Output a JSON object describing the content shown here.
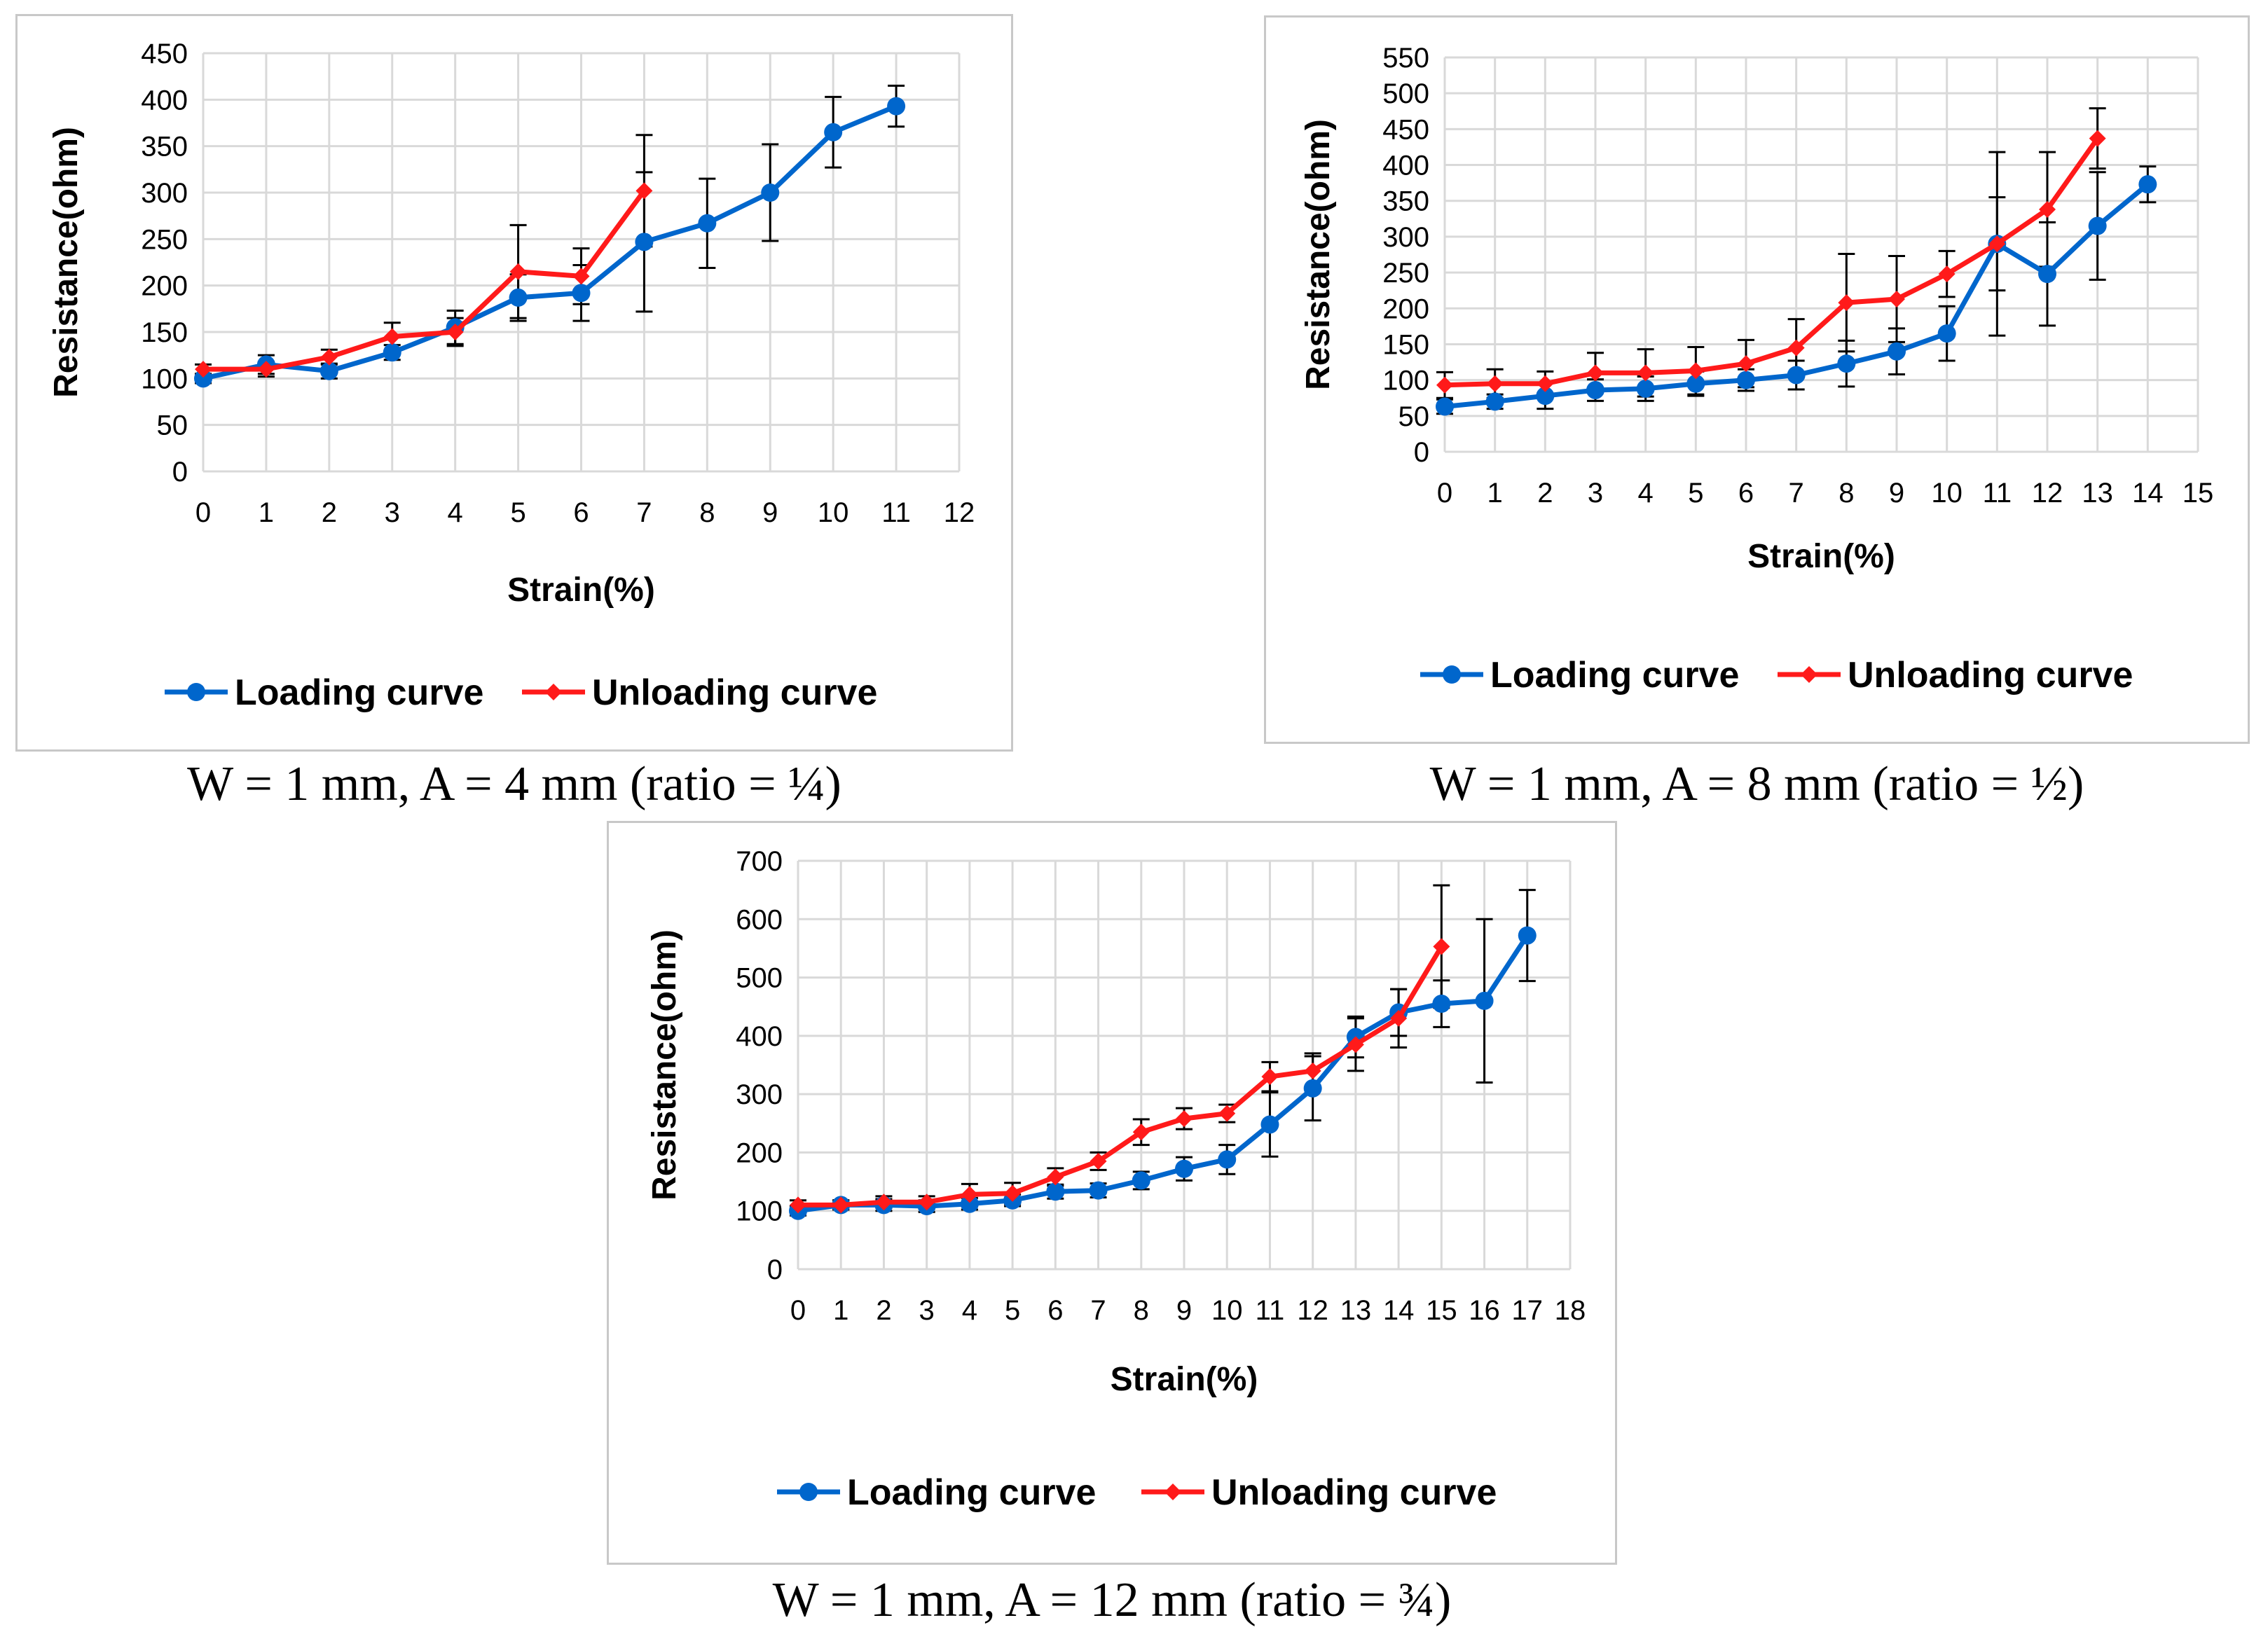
{
  "colors": {
    "loading": "#0066cc",
    "unloading": "#ff1a1a",
    "grid": "#d9d9d9",
    "errorbar": "#000000"
  },
  "captions": [
    "W = 1 mm, A = 4 mm (ratio = ¼)",
    "W = 1 mm, A = 8 mm (ratio = ½)",
    "W = 1 mm, A = 12 mm (ratio = ¾)"
  ],
  "chart_data": [
    {
      "type": "line",
      "xlabel": "Strain(%)",
      "ylabel": "Resistance(ohm)",
      "xlim": [
        0,
        12
      ],
      "ylim": [
        0,
        450
      ],
      "y_step": 50,
      "legend_position": "bottom",
      "series": [
        {
          "name": "Loading curve",
          "x": [
            0,
            1,
            2,
            3,
            4,
            5,
            6,
            7,
            8,
            9,
            10,
            11
          ],
          "y": [
            100,
            115,
            108,
            128,
            155,
            187,
            192,
            247,
            267,
            300,
            365,
            393
          ],
          "err": [
            5,
            10,
            8,
            8,
            18,
            25,
            30,
            75,
            48,
            52,
            38,
            22
          ]
        },
        {
          "name": "Unloading curve",
          "x": [
            0,
            1,
            2,
            3,
            4,
            5,
            6,
            7
          ],
          "y": [
            110,
            110,
            123,
            145,
            150,
            215,
            210,
            302
          ],
          "err": [
            5,
            8,
            8,
            15,
            15,
            50,
            30,
            60
          ]
        }
      ]
    },
    {
      "type": "line",
      "xlabel": "Strain(%)",
      "ylabel": "Resistance(ohm)",
      "xlim": [
        0,
        15
      ],
      "ylim": [
        0,
        550
      ],
      "y_step": 50,
      "legend_position": "bottom",
      "series": [
        {
          "name": "Loading curve",
          "x": [
            0,
            1,
            2,
            3,
            4,
            5,
            6,
            7,
            8,
            9,
            10,
            11,
            12,
            13,
            14
          ],
          "y": [
            63,
            70,
            78,
            86,
            88,
            95,
            100,
            107,
            123,
            140,
            165,
            290,
            248,
            315,
            373
          ],
          "err": [
            10,
            10,
            18,
            15,
            17,
            17,
            15,
            20,
            32,
            32,
            38,
            65,
            72,
            75,
            25
          ]
        },
        {
          "name": "Unloading curve",
          "x": [
            0,
            1,
            2,
            3,
            4,
            5,
            6,
            7,
            8,
            9,
            10,
            11,
            12,
            13
          ],
          "y": [
            93,
            95,
            95,
            110,
            110,
            113,
            123,
            145,
            208,
            213,
            248,
            290,
            338,
            437
          ],
          "err": [
            18,
            20,
            17,
            28,
            33,
            33,
            33,
            40,
            68,
            60,
            32,
            128,
            80,
            42
          ]
        }
      ]
    },
    {
      "type": "line",
      "xlabel": "Strain(%)",
      "ylabel": "Resistance(ohm)",
      "xlim": [
        0,
        18
      ],
      "ylim": [
        0,
        700
      ],
      "y_step": 100,
      "legend_position": "bottom",
      "series": [
        {
          "name": "Loading curve",
          "x": [
            0,
            1,
            2,
            3,
            4,
            5,
            6,
            7,
            8,
            9,
            10,
            11,
            12,
            13,
            14,
            15,
            16,
            17
          ],
          "y": [
            100,
            110,
            110,
            108,
            112,
            118,
            133,
            135,
            152,
            172,
            188,
            248,
            310,
            398,
            440,
            455,
            460,
            572
          ],
          "err": [
            8,
            8,
            10,
            10,
            10,
            10,
            12,
            12,
            15,
            20,
            25,
            55,
            55,
            35,
            40,
            40,
            140,
            78
          ]
        },
        {
          "name": "Unloading curve",
          "x": [
            0,
            1,
            2,
            3,
            4,
            5,
            6,
            7,
            8,
            9,
            10,
            11,
            12,
            13,
            14,
            15
          ],
          "y": [
            110,
            110,
            115,
            115,
            128,
            130,
            158,
            185,
            235,
            258,
            267,
            330,
            340,
            385,
            430,
            553
          ],
          "err": [
            8,
            8,
            10,
            10,
            18,
            18,
            15,
            15,
            22,
            18,
            15,
            25,
            30,
            45,
            50,
            105
          ]
        }
      ]
    }
  ]
}
